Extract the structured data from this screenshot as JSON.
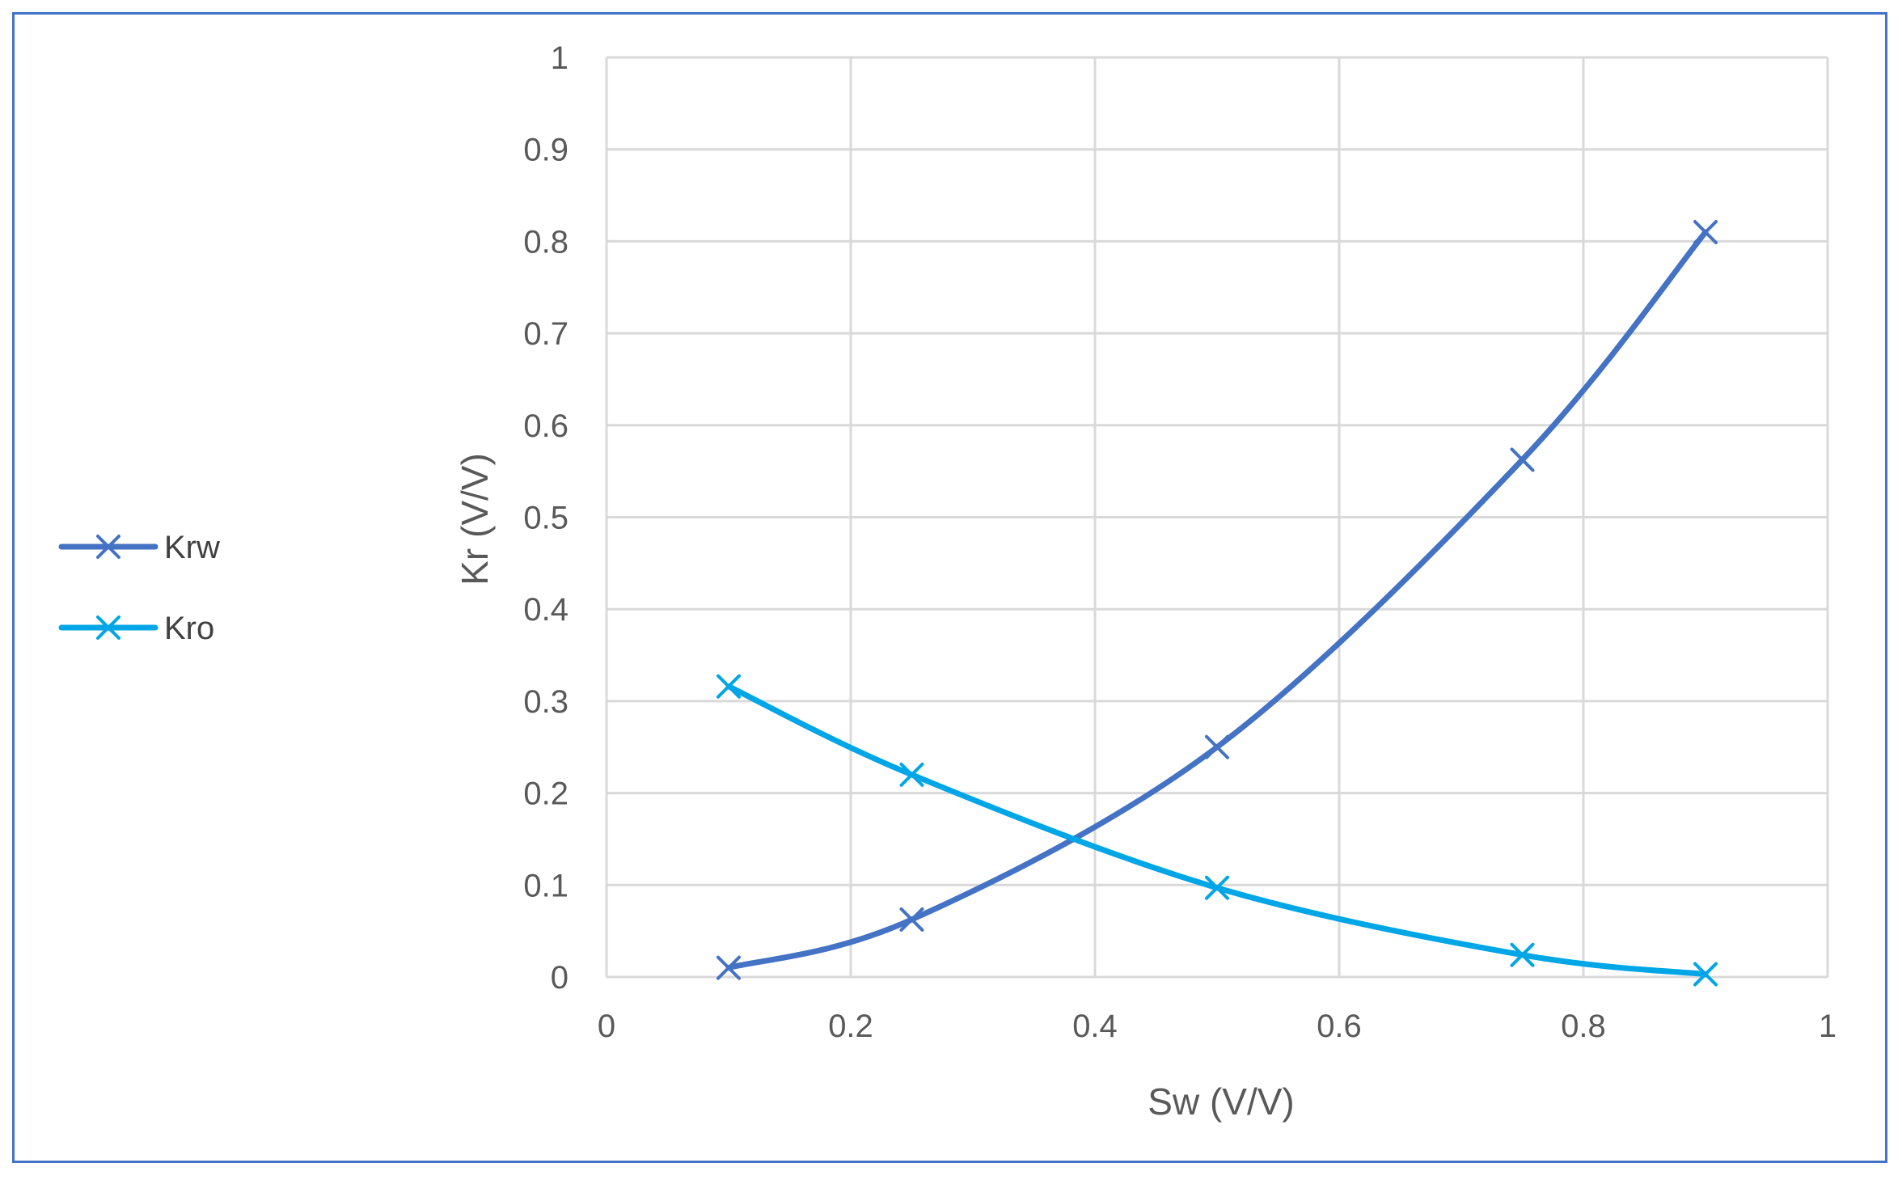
{
  "chart_data": {
    "type": "scatter",
    "title": "",
    "xlabel": "Sw (V/V)",
    "ylabel": "Kr (V/V)",
    "xlim": [
      0,
      1
    ],
    "ylim": [
      0,
      1
    ],
    "x_ticks": [
      0,
      0.2,
      0.4,
      0.6,
      0.8,
      1
    ],
    "y_ticks": [
      0,
      0.1,
      0.2,
      0.3,
      0.4,
      0.5,
      0.6,
      0.7,
      0.8,
      0.9,
      1
    ],
    "x_tick_labels": [
      "0",
      "0.2",
      "0.4",
      "0.6",
      "0.8",
      "1"
    ],
    "y_tick_labels": [
      "0",
      "0.1",
      "0.2",
      "0.3",
      "0.4",
      "0.5",
      "0.6",
      "0.7",
      "0.8",
      "0.9",
      "1"
    ],
    "grid": true,
    "legend_position": "left",
    "smooth": true,
    "series": [
      {
        "name": "Krw",
        "color": "#4472C4",
        "marker": "x",
        "x": [
          0.1,
          0.25,
          0.5,
          0.75,
          0.9
        ],
        "values": [
          0.01,
          0.0625,
          0.25,
          0.5625,
          0.81
        ]
      },
      {
        "name": "Kro",
        "color": "#00A6E6",
        "marker": "x",
        "x": [
          0.1,
          0.25,
          0.5,
          0.75,
          0.9
        ],
        "values": [
          0.316,
          0.22,
          0.097,
          0.024,
          0.003
        ]
      }
    ]
  }
}
